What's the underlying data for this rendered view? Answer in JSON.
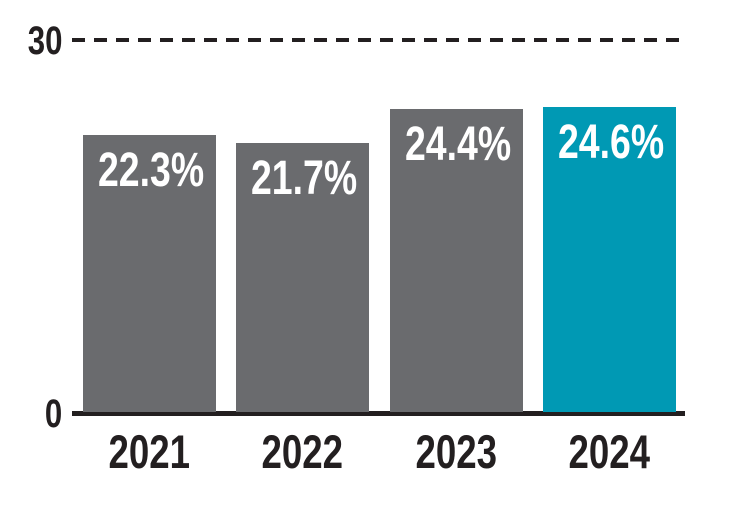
{
  "chart_data": {
    "type": "bar",
    "categories": [
      "2021",
      "2022",
      "2023",
      "2024"
    ],
    "values": [
      22.3,
      21.7,
      24.4,
      24.6
    ],
    "bar_labels": [
      "22.3%",
      "21.7%",
      "24.4%",
      "24.6%"
    ],
    "title": "",
    "xlabel": "",
    "ylabel": "",
    "ylim": [
      0,
      30
    ],
    "yticks": [
      {
        "value": 0,
        "label": "0"
      },
      {
        "value": 30,
        "label": "30"
      }
    ],
    "gridline": {
      "value": 30,
      "style": "dashed"
    },
    "legend_position": "none",
    "grid": "top-dashed-only",
    "colors": {
      "bar_default": "#6a6b6e",
      "bar_highlight": "#0099b4",
      "highlight_index": 3,
      "axis": "#231f20",
      "bar_label_text": "#ffffff",
      "tick_text": "#231f20"
    }
  }
}
